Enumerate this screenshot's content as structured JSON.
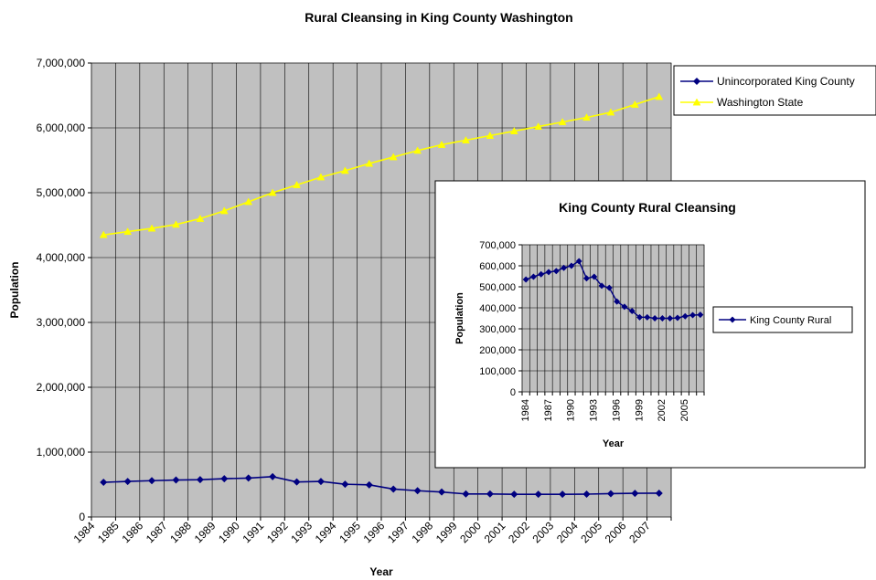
{
  "chart_data": [
    {
      "type": "line",
      "title": "Rural Cleansing in King County Washington",
      "xlabel": "Year",
      "ylabel": "Population",
      "ylim": [
        0,
        7000000
      ],
      "y_ticks": [
        "0",
        "1,000,000",
        "2,000,000",
        "3,000,000",
        "4,000,000",
        "5,000,000",
        "6,000,000",
        "7,000,000"
      ],
      "categories": [
        "1984",
        "1985",
        "1986",
        "1987",
        "1988",
        "1989",
        "1990",
        "1991",
        "1992",
        "1993",
        "1994",
        "1995",
        "1996",
        "1997",
        "1998",
        "1999",
        "2000",
        "2001",
        "2002",
        "2003",
        "2004",
        "2005",
        "2006",
        "2007"
      ],
      "grid": true,
      "legend_position": "right",
      "series": [
        {
          "name": "Unincorporated King County",
          "color": "#000080",
          "marker": "diamond",
          "values": [
            535000,
            548000,
            560000,
            570000,
            575000,
            590000,
            600000,
            622000,
            540000,
            548000,
            505000,
            495000,
            430000,
            405000,
            385000,
            355000,
            355000,
            350000,
            350000,
            350000,
            352000,
            360000,
            365000,
            367000
          ]
        },
        {
          "name": "Washington State",
          "color": "#ffff00",
          "marker": "triangle",
          "values": [
            4350000,
            4400000,
            4450000,
            4510000,
            4600000,
            4720000,
            4860000,
            5000000,
            5120000,
            5240000,
            5340000,
            5450000,
            5550000,
            5650000,
            5740000,
            5810000,
            5880000,
            5950000,
            6020000,
            6090000,
            6160000,
            6240000,
            6360000,
            6480000
          ]
        }
      ]
    },
    {
      "type": "line",
      "title": "King County Rural Cleansing",
      "xlabel": "Year",
      "ylabel": "Population",
      "ylim": [
        0,
        700000
      ],
      "y_ticks": [
        "0",
        "100,000",
        "200,000",
        "300,000",
        "400,000",
        "500,000",
        "600,000",
        "700,000"
      ],
      "categories": [
        "1984",
        "1985",
        "1986",
        "1987",
        "1988",
        "1989",
        "1990",
        "1991",
        "1992",
        "1993",
        "1994",
        "1995",
        "1996",
        "1997",
        "1998",
        "1999",
        "2000",
        "2001",
        "2002",
        "2003",
        "2004",
        "2005",
        "2006",
        "2007"
      ],
      "tick_labels": [
        "1984",
        "1987",
        "1990",
        "1993",
        "1996",
        "1999",
        "2002",
        "2005"
      ],
      "grid": true,
      "legend_position": "right",
      "series": [
        {
          "name": "King County Rural",
          "color": "#000080",
          "marker": "diamond",
          "values": [
            535000,
            548000,
            560000,
            570000,
            575000,
            590000,
            600000,
            622000,
            540000,
            548000,
            505000,
            495000,
            430000,
            405000,
            385000,
            355000,
            355000,
            350000,
            350000,
            350000,
            352000,
            360000,
            365000,
            367000
          ]
        }
      ]
    }
  ]
}
